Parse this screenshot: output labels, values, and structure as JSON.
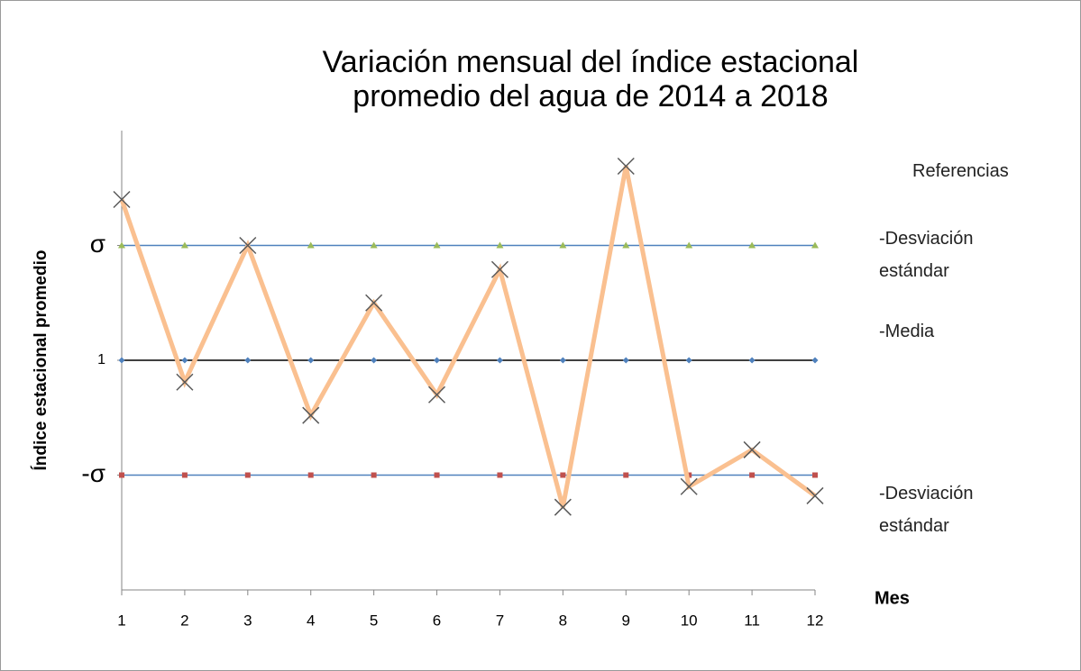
{
  "chart_data": {
    "type": "line",
    "title": "Variación mensual del índice estacional promedio del agua de 2014 a 2018",
    "x_label": "Mes",
    "y_label": "Índice estacional promedio",
    "legend_title": "Referencias",
    "categories": [
      1,
      2,
      3,
      4,
      5,
      6,
      7,
      8,
      9,
      10,
      11,
      12
    ],
    "ylim": [
      0.8,
      1.2
    ],
    "yticks": [
      {
        "value": 0.9,
        "label": "-σ"
      },
      1,
      {
        "value": 1.1,
        "label": "σ"
      }
    ],
    "series": [
      {
        "name": "-Desviación estándar",
        "color": "#4f81bd",
        "marker_color": "#9bbb59",
        "values": [
          1.1,
          1.1,
          1.1,
          1.1,
          1.1,
          1.1,
          1.1,
          1.1,
          1.1,
          1.1,
          1.1,
          1.1
        ]
      },
      {
        "name": "-Media",
        "color": "#000000",
        "marker_color": "#4f81bd",
        "values": [
          1,
          1,
          1,
          1,
          1,
          1,
          1,
          1,
          1,
          1,
          1,
          1
        ]
      },
      {
        "name": "-Desviación estándar",
        "color": "#4f81bd",
        "marker_color": "#c0504d",
        "values": [
          0.9,
          0.9,
          0.9,
          0.9,
          0.9,
          0.9,
          0.9,
          0.9,
          0.9,
          0.9,
          0.9,
          0.9
        ]
      },
      {
        "color": "#fac090",
        "marker_color": "#595959",
        "values": [
          1.14,
          0.981,
          1.1,
          0.952,
          1.05,
          0.97,
          1.079,
          0.872,
          1.169,
          0.89,
          0.922,
          0.882
        ]
      }
    ]
  }
}
